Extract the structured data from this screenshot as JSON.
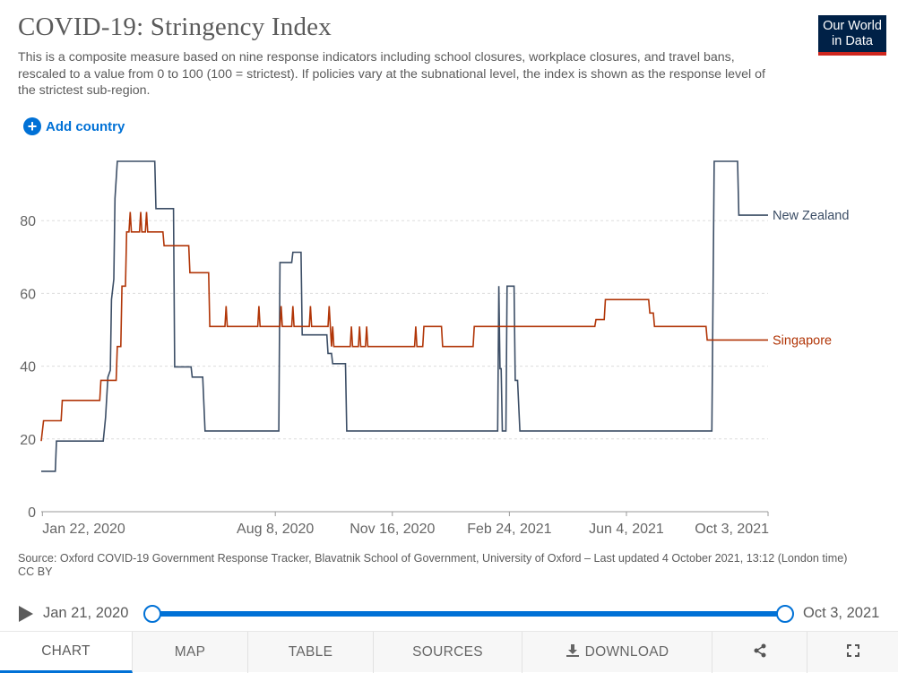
{
  "header": {
    "title": "COVID-19: Stringency Index",
    "subtitle": "This is a composite measure based on nine response indicators including school closures, workplace closures, and travel bans, rescaled to a value from 0 to 100 (100 = strictest). If policies vary at the subnational level, the index is shown as the response level of the strictest sub-region.",
    "logo_line1": "Our World",
    "logo_line2": "in Data"
  },
  "controls": {
    "add_country_label": "Add country",
    "add_icon": "plus-circle-icon"
  },
  "colors": {
    "new_zealand": "#3c4e66",
    "singapore": "#b13507",
    "grid": "#dddddd",
    "axis": "#666666",
    "accent": "#0071d6"
  },
  "chart_data": {
    "type": "line",
    "title": "COVID-19: Stringency Index",
    "xlabel": "",
    "ylabel": "",
    "x_range": [
      "2020-01-21",
      "2021-10-03"
    ],
    "ylim": [
      0,
      100
    ],
    "y_ticks": [
      0,
      20,
      40,
      60,
      80
    ],
    "x_ticks": [
      {
        "date": "2020-01-22",
        "label": "Jan 22, 2020"
      },
      {
        "date": "2020-08-08",
        "label": "Aug 8, 2020"
      },
      {
        "date": "2020-11-16",
        "label": "Nov 16, 2020"
      },
      {
        "date": "2021-02-24",
        "label": "Feb 24, 2021"
      },
      {
        "date": "2021-06-04",
        "label": "Jun 4, 2021"
      },
      {
        "date": "2021-10-03",
        "label": "Oct 3, 2021"
      }
    ],
    "grid": "horizontal dashed",
    "legend": "end-of-line labels",
    "series": [
      {
        "name": "New Zealand",
        "end_value": 81.5,
        "points": [
          [
            "2020-01-21",
            11.1
          ],
          [
            "2020-02-02",
            11.1
          ],
          [
            "2020-02-03",
            19.4
          ],
          [
            "2020-03-14",
            19.4
          ],
          [
            "2020-03-16",
            25.9
          ],
          [
            "2020-03-18",
            37.0
          ],
          [
            "2020-03-20",
            38.9
          ],
          [
            "2020-03-21",
            58.3
          ],
          [
            "2020-03-23",
            63.9
          ],
          [
            "2020-03-24",
            86.1
          ],
          [
            "2020-03-26",
            96.3
          ],
          [
            "2020-04-27",
            96.3
          ],
          [
            "2020-04-28",
            83.3
          ],
          [
            "2020-05-13",
            83.3
          ],
          [
            "2020-05-14",
            39.8
          ],
          [
            "2020-05-28",
            39.8
          ],
          [
            "2020-05-29",
            37.0
          ],
          [
            "2020-06-07",
            37.0
          ],
          [
            "2020-06-09",
            22.2
          ],
          [
            "2020-08-11",
            22.2
          ],
          [
            "2020-08-12",
            68.5
          ],
          [
            "2020-08-22",
            68.5
          ],
          [
            "2020-08-23",
            71.3
          ],
          [
            "2020-08-30",
            71.3
          ],
          [
            "2020-08-31",
            48.6
          ],
          [
            "2020-09-21",
            48.6
          ],
          [
            "2020-09-22",
            43.5
          ],
          [
            "2020-09-25",
            43.5
          ],
          [
            "2020-09-26",
            40.7
          ],
          [
            "2020-10-07",
            40.7
          ],
          [
            "2020-10-08",
            22.2
          ],
          [
            "2021-02-14",
            22.2
          ],
          [
            "2021-02-15",
            62.0
          ],
          [
            "2021-02-16",
            39.3
          ],
          [
            "2021-02-17",
            39.3
          ],
          [
            "2021-02-18",
            22.2
          ],
          [
            "2021-02-21",
            22.2
          ],
          [
            "2021-02-22",
            62.0
          ],
          [
            "2021-02-28",
            62.0
          ],
          [
            "2021-03-01",
            36.1
          ],
          [
            "2021-03-03",
            36.1
          ],
          [
            "2021-03-05",
            22.2
          ],
          [
            "2021-08-16",
            22.2
          ],
          [
            "2021-08-18",
            96.3
          ],
          [
            "2021-09-07",
            96.3
          ],
          [
            "2021-09-08",
            81.5
          ],
          [
            "2021-10-03",
            81.5
          ]
        ]
      },
      {
        "name": "Singapore",
        "end_value": 47.2,
        "points": [
          [
            "2020-01-21",
            19.4
          ],
          [
            "2020-01-23",
            25.0
          ],
          [
            "2020-02-07",
            25.0
          ],
          [
            "2020-02-08",
            30.6
          ],
          [
            "2020-03-11",
            30.6
          ],
          [
            "2020-03-12",
            36.1
          ],
          [
            "2020-03-25",
            36.1
          ],
          [
            "2020-03-26",
            45.4
          ],
          [
            "2020-03-29",
            45.4
          ],
          [
            "2020-03-30",
            62.0
          ],
          [
            "2020-04-02",
            62.0
          ],
          [
            "2020-04-03",
            76.9
          ],
          [
            "2020-04-05",
            76.9
          ],
          [
            "2020-04-06",
            82.4
          ],
          [
            "2020-04-07",
            76.9
          ],
          [
            "2020-04-14",
            76.9
          ],
          [
            "2020-04-15",
            82.4
          ],
          [
            "2020-04-16",
            76.9
          ],
          [
            "2020-04-19",
            76.9
          ],
          [
            "2020-04-20",
            82.4
          ],
          [
            "2020-04-21",
            76.9
          ],
          [
            "2020-05-04",
            76.9
          ],
          [
            "2020-05-05",
            73.1
          ],
          [
            "2020-05-26",
            73.1
          ],
          [
            "2020-05-27",
            65.7
          ],
          [
            "2020-06-12",
            65.7
          ],
          [
            "2020-06-13",
            50.9
          ],
          [
            "2020-06-26",
            50.9
          ],
          [
            "2020-06-27",
            56.5
          ],
          [
            "2020-06-28",
            50.9
          ],
          [
            "2020-07-24",
            50.9
          ],
          [
            "2020-07-25",
            56.5
          ],
          [
            "2020-07-26",
            50.9
          ],
          [
            "2020-08-12",
            50.9
          ],
          [
            "2020-08-13",
            56.5
          ],
          [
            "2020-08-14",
            50.9
          ],
          [
            "2020-08-22",
            50.9
          ],
          [
            "2020-08-23",
            56.5
          ],
          [
            "2020-08-24",
            50.9
          ],
          [
            "2020-09-06",
            50.9
          ],
          [
            "2020-09-07",
            56.5
          ],
          [
            "2020-09-08",
            50.9
          ],
          [
            "2020-09-22",
            50.9
          ],
          [
            "2020-09-23",
            56.5
          ],
          [
            "2020-09-24",
            50.9
          ],
          [
            "2020-09-25",
            45.4
          ],
          [
            "2020-09-26",
            50.9
          ],
          [
            "2020-09-27",
            45.4
          ],
          [
            "2020-10-11",
            45.4
          ],
          [
            "2020-10-12",
            50.9
          ],
          [
            "2020-10-13",
            45.4
          ],
          [
            "2020-10-18",
            45.4
          ],
          [
            "2020-10-19",
            50.9
          ],
          [
            "2020-10-20",
            45.4
          ],
          [
            "2020-10-24",
            45.4
          ],
          [
            "2020-10-25",
            50.9
          ],
          [
            "2020-10-26",
            45.4
          ],
          [
            "2020-12-05",
            45.4
          ],
          [
            "2020-12-06",
            50.9
          ],
          [
            "2020-12-07",
            45.4
          ],
          [
            "2020-12-12",
            45.4
          ],
          [
            "2020-12-13",
            50.9
          ],
          [
            "2020-12-28",
            50.9
          ],
          [
            "2020-12-29",
            45.4
          ],
          [
            "2021-01-24",
            45.4
          ],
          [
            "2021-01-25",
            50.9
          ],
          [
            "2021-05-08",
            50.9
          ],
          [
            "2021-05-09",
            52.8
          ],
          [
            "2021-05-16",
            52.8
          ],
          [
            "2021-05-17",
            58.3
          ],
          [
            "2021-06-23",
            58.3
          ],
          [
            "2021-06-24",
            54.6
          ],
          [
            "2021-06-27",
            54.6
          ],
          [
            "2021-06-28",
            50.9
          ],
          [
            "2021-08-11",
            50.9
          ],
          [
            "2021-08-12",
            47.2
          ],
          [
            "2021-10-03",
            47.2
          ]
        ]
      }
    ]
  },
  "footer": {
    "source": "Source: Oxford COVID-19 Government Response Tracker, Blavatnik School of Government, University of Oxford – Last updated 4 October 2021, 13:12 (London time)",
    "license": "CC BY"
  },
  "timeline": {
    "start_label": "Jan 21, 2020",
    "end_label": "Oct 3, 2021",
    "selected_fraction": [
      0,
      1
    ]
  },
  "tabs": {
    "chart": "CHART",
    "map": "MAP",
    "table": "TABLE",
    "sources": "SOURCES",
    "download": "DOWNLOAD",
    "share_icon": "share-icon",
    "fullscreen_icon": "fullscreen-icon",
    "download_icon": "download-icon"
  }
}
